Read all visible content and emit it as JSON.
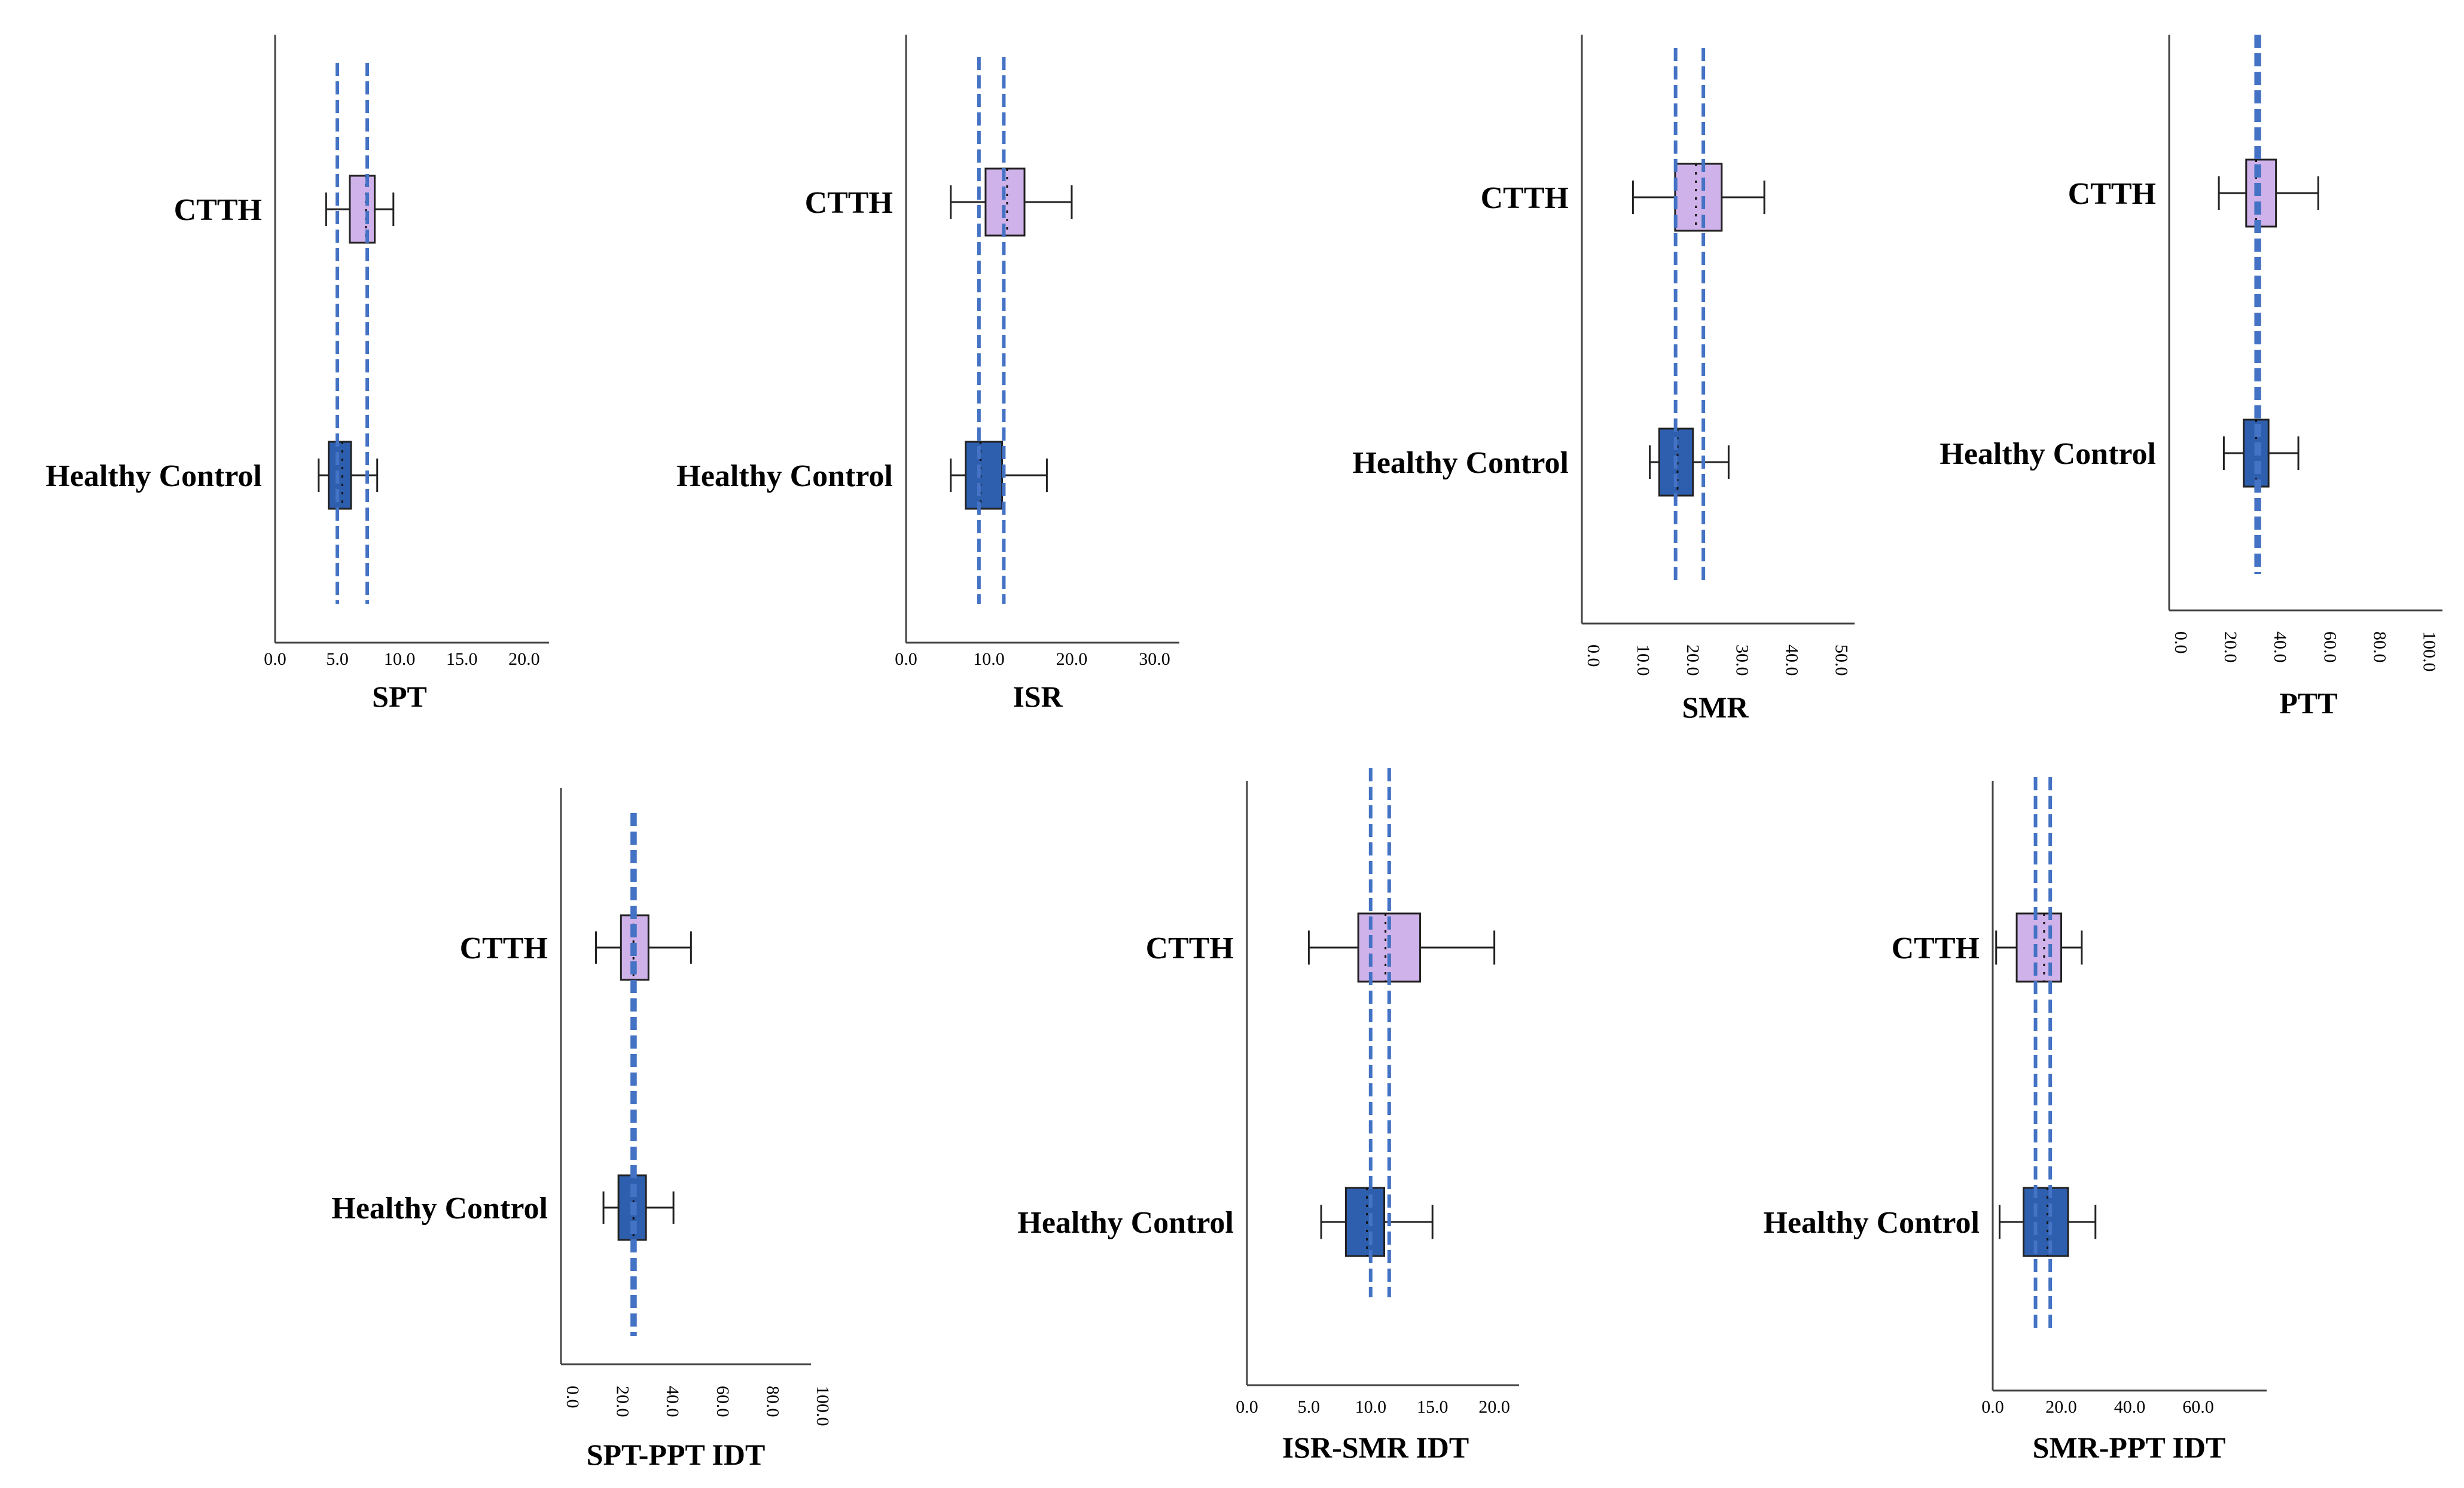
{
  "colors": {
    "ctth_fill": "#cfb2ea",
    "healthy_fill": "#2e5faf",
    "box_stroke": "#222222",
    "axis": "#444444",
    "dashed": "#4472c4",
    "text": "#000000"
  },
  "chart_data": [
    {
      "id": "SPT",
      "type": "boxplot",
      "orientation": "horizontal",
      "xlabel": "SPT",
      "categories": [
        "CTTH",
        "Healthy Control"
      ],
      "xlim": [
        0,
        22
      ],
      "ticks": [
        0,
        5,
        10,
        15,
        20
      ],
      "tick_labels": [
        "0.0",
        "5.0",
        "10.0",
        "15.0",
        "20.0"
      ],
      "series": [
        {
          "name": "CTTH",
          "whisker_low": 4.1,
          "q1": 6.0,
          "median": 7.3,
          "q3": 8.0,
          "whisker_high": 9.5
        },
        {
          "name": "Healthy Control",
          "whisker_low": 3.5,
          "q1": 4.3,
          "median": 5.4,
          "q3": 6.1,
          "whisker_high": 8.2
        }
      ],
      "reference_lines": [
        5.0,
        7.4
      ]
    },
    {
      "id": "ISR",
      "type": "boxplot",
      "orientation": "horizontal",
      "xlabel": "ISR",
      "categories": [
        "CTTH",
        "Healthy Control"
      ],
      "xlim": [
        0,
        33
      ],
      "ticks": [
        0,
        10,
        20,
        30
      ],
      "tick_labels": [
        "0.0",
        "10.0",
        "20.0",
        "30.0"
      ],
      "series": [
        {
          "name": "CTTH",
          "whisker_low": 5.4,
          "q1": 9.6,
          "median": 12.2,
          "q3": 14.3,
          "whisker_high": 20.0
        },
        {
          "name": "Healthy Control",
          "whisker_low": 5.4,
          "q1": 7.2,
          "median": 9.0,
          "q3": 11.6,
          "whisker_high": 17.0
        }
      ],
      "reference_lines": [
        8.8,
        11.8
      ]
    },
    {
      "id": "SMR",
      "type": "boxplot",
      "orientation": "horizontal",
      "xlabel": "SMR",
      "categories": [
        "CTTH",
        "Healthy Control"
      ],
      "xlim": [
        0,
        55
      ],
      "ticks": [
        0,
        10,
        20,
        30,
        40,
        50
      ],
      "tick_labels": [
        "0.0",
        "10.0",
        "20.0",
        "30.0",
        "40.0",
        "50.0"
      ],
      "series": [
        {
          "name": "CTTH",
          "whisker_low": 10.3,
          "q1": 18.8,
          "median": 23.0,
          "q3": 28.2,
          "whisker_high": 36.8
        },
        {
          "name": "Healthy Control",
          "whisker_low": 13.7,
          "q1": 15.6,
          "median": 19.3,
          "q3": 22.4,
          "whisker_high": 29.6
        }
      ],
      "reference_lines": [
        18.9,
        24.5
      ]
    },
    {
      "id": "PTT",
      "type": "boxplot",
      "orientation": "horizontal",
      "xlabel": "PTT",
      "categories": [
        "CTTH",
        "Healthy Control"
      ],
      "xlim": [
        0,
        110
      ],
      "ticks": [
        0,
        20,
        40,
        60,
        80,
        100
      ],
      "tick_labels": [
        "0.0",
        "20.0",
        "40.0",
        "60.0",
        "80.0",
        "100.0"
      ],
      "series": [
        {
          "name": "CTTH",
          "whisker_low": 20.0,
          "q1": 31.0,
          "median": 35.0,
          "q3": 43.0,
          "whisker_high": 60.0
        },
        {
          "name": "Healthy Control",
          "whisker_low": 22.0,
          "q1": 30.0,
          "median": 35.0,
          "q3": 40.0,
          "whisker_high": 52.0
        }
      ],
      "reference_lines": [
        35.0,
        36.3
      ]
    },
    {
      "id": "SPT-PPT IDT",
      "type": "boxplot",
      "orientation": "horizontal",
      "xlabel": "SPT-PPT  IDT",
      "categories": [
        "CTTH",
        "Healthy Control"
      ],
      "xlim": [
        0,
        100
      ],
      "ticks": [
        0,
        20,
        40,
        60,
        80,
        100
      ],
      "tick_labels": [
        "0.0",
        "20.0",
        "40.0",
        "60.0",
        "80.0",
        "100.0"
      ],
      "series": [
        {
          "name": "CTTH",
          "whisker_low": 14.0,
          "q1": 24.0,
          "median": 29.0,
          "q3": 35.0,
          "whisker_high": 52.0
        },
        {
          "name": "Healthy Control",
          "whisker_low": 17.0,
          "q1": 23.0,
          "median": 29.0,
          "q3": 34.0,
          "whisker_high": 45.0
        }
      ],
      "reference_lines": [
        28.5,
        29.6
      ]
    },
    {
      "id": "ISR-SMR IDT",
      "type": "boxplot",
      "orientation": "horizontal",
      "xlabel": "ISR-SMR  IDT",
      "categories": [
        "CTTH",
        "Healthy Control"
      ],
      "xlim": [
        0,
        22
      ],
      "ticks": [
        0,
        5,
        10,
        15,
        20
      ],
      "tick_labels": [
        "0.0",
        "5.0",
        "10.0",
        "15.0",
        "20.0"
      ],
      "series": [
        {
          "name": "CTTH",
          "whisker_low": 5.0,
          "q1": 9.0,
          "median": 11.2,
          "q3": 14.0,
          "whisker_high": 20.0
        },
        {
          "name": "Healthy Control",
          "whisker_low": 6.0,
          "q1": 8.0,
          "median": 9.7,
          "q3": 11.1,
          "whisker_high": 15.0
        }
      ],
      "reference_lines": [
        10.0,
        11.5
      ]
    },
    {
      "id": "SMR-PPT IDT",
      "type": "boxplot",
      "orientation": "horizontal",
      "xlabel": "SMR-PPT  IDT",
      "categories": [
        "CTTH",
        "Healthy Control"
      ],
      "xlim": [
        0,
        80
      ],
      "ticks": [
        0,
        20,
        40,
        60
      ],
      "tick_labels": [
        "0.0",
        "20.0",
        "40.0",
        "60.0"
      ],
      "series": [
        {
          "name": "CTTH",
          "whisker_low": 1.0,
          "q1": 7.0,
          "median": 15.0,
          "q3": 20.0,
          "whisker_high": 26.0
        },
        {
          "name": "Healthy Control",
          "whisker_low": 2.0,
          "q1": 9.0,
          "median": 16.0,
          "q3": 22.0,
          "whisker_high": 30.0
        }
      ],
      "reference_lines": [
        12.5,
        16.8
      ]
    }
  ]
}
